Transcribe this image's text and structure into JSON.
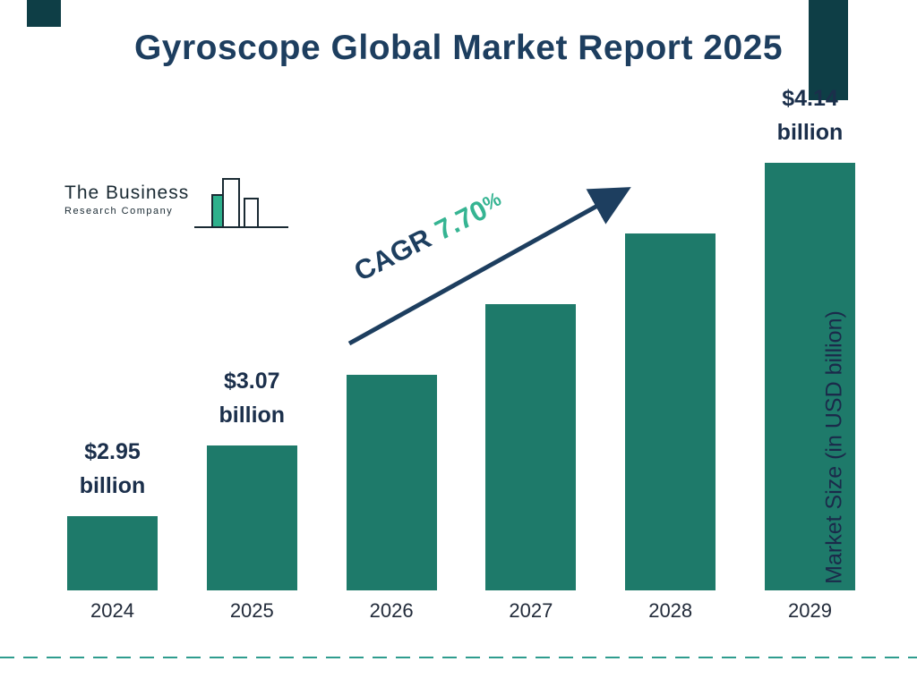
{
  "title": "Gyroscope Global Market Report 2025",
  "logo": {
    "line1": "The Business",
    "line2": "Research Company"
  },
  "cagr": {
    "label": "CAGR",
    "value": "7.70",
    "suffix": "%"
  },
  "y_axis_label": "Market Size (in USD billion)",
  "chart_data": {
    "type": "bar",
    "title": "Gyroscope Global Market Report 2025",
    "categories": [
      "2024",
      "2025",
      "2026",
      "2027",
      "2028",
      "2029"
    ],
    "values": [
      2.95,
      3.07,
      3.31,
      3.56,
      3.84,
      4.14
    ],
    "value_unit": "USD billion",
    "bar_labels": [
      "$2.95 billion",
      "$3.07 billion",
      "",
      "",
      "",
      "$4.14 billion"
    ],
    "xlabel": "",
    "ylabel": "Market Size (in USD billion)",
    "annotations": [
      "CAGR 7.70%"
    ],
    "grid": false,
    "legend": false,
    "bar_color": "#1e7a6a"
  },
  "colors": {
    "bar": "#1e7a6a",
    "title_navy": "#1d3e5f",
    "cagr_green": "#35b492",
    "corner_teal": "#0e3e46",
    "dashed_rule": "#2e9c8e",
    "arrow_navy": "#1d3e5f"
  }
}
